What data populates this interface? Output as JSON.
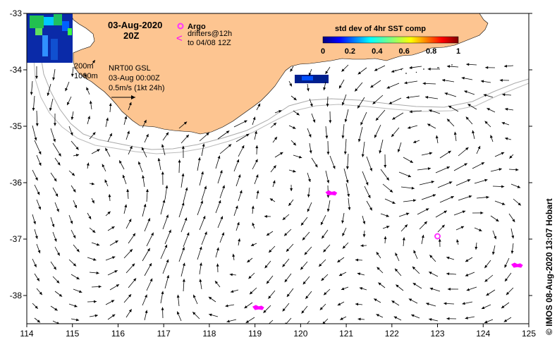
{
  "map": {
    "date": "03-Aug-2020",
    "time": "20Z",
    "argo_label": "Argo",
    "drifter_label_1": "drifters@12h",
    "drifter_label_2": "to 04/08 12Z",
    "isobath_200": "200m",
    "isobath_1000": "1000m",
    "model_1": "NRT00 GSL",
    "model_2": "03-Aug 00:00Z",
    "scale_label": "0.5m/s (1kt 24h)",
    "colorbar_title": "std dev of 4hr SST comp",
    "colorbar_ticks": [
      "0",
      "0.2",
      "0.4",
      "0.6",
      "0.8",
      "1"
    ],
    "credit": "© IMOS 08-Aug-2020 13:07 Hobart",
    "x_ticks": [
      "114",
      "115",
      "116",
      "117",
      "118",
      "119",
      "120",
      "121",
      "122",
      "123",
      "124",
      "125"
    ],
    "y_ticks": [
      "-33",
      "-34",
      "-35",
      "-36",
      "-37",
      "-38"
    ],
    "land_color": "#fdc591",
    "argo_color": "#ff33ff",
    "drifter_color": "#ff00ff",
    "lon_range": [
      114,
      125
    ],
    "lat_range": [
      -38.5,
      -33
    ]
  },
  "argo_floats": [
    {
      "lon": 123.0,
      "lat": -36.95
    }
  ],
  "drifters": [
    {
      "lon": 120.65,
      "lat": -36.17
    },
    {
      "lon": 119.05,
      "lat": -38.2
    },
    {
      "lon": 124.72,
      "lat": -37.45
    }
  ]
}
